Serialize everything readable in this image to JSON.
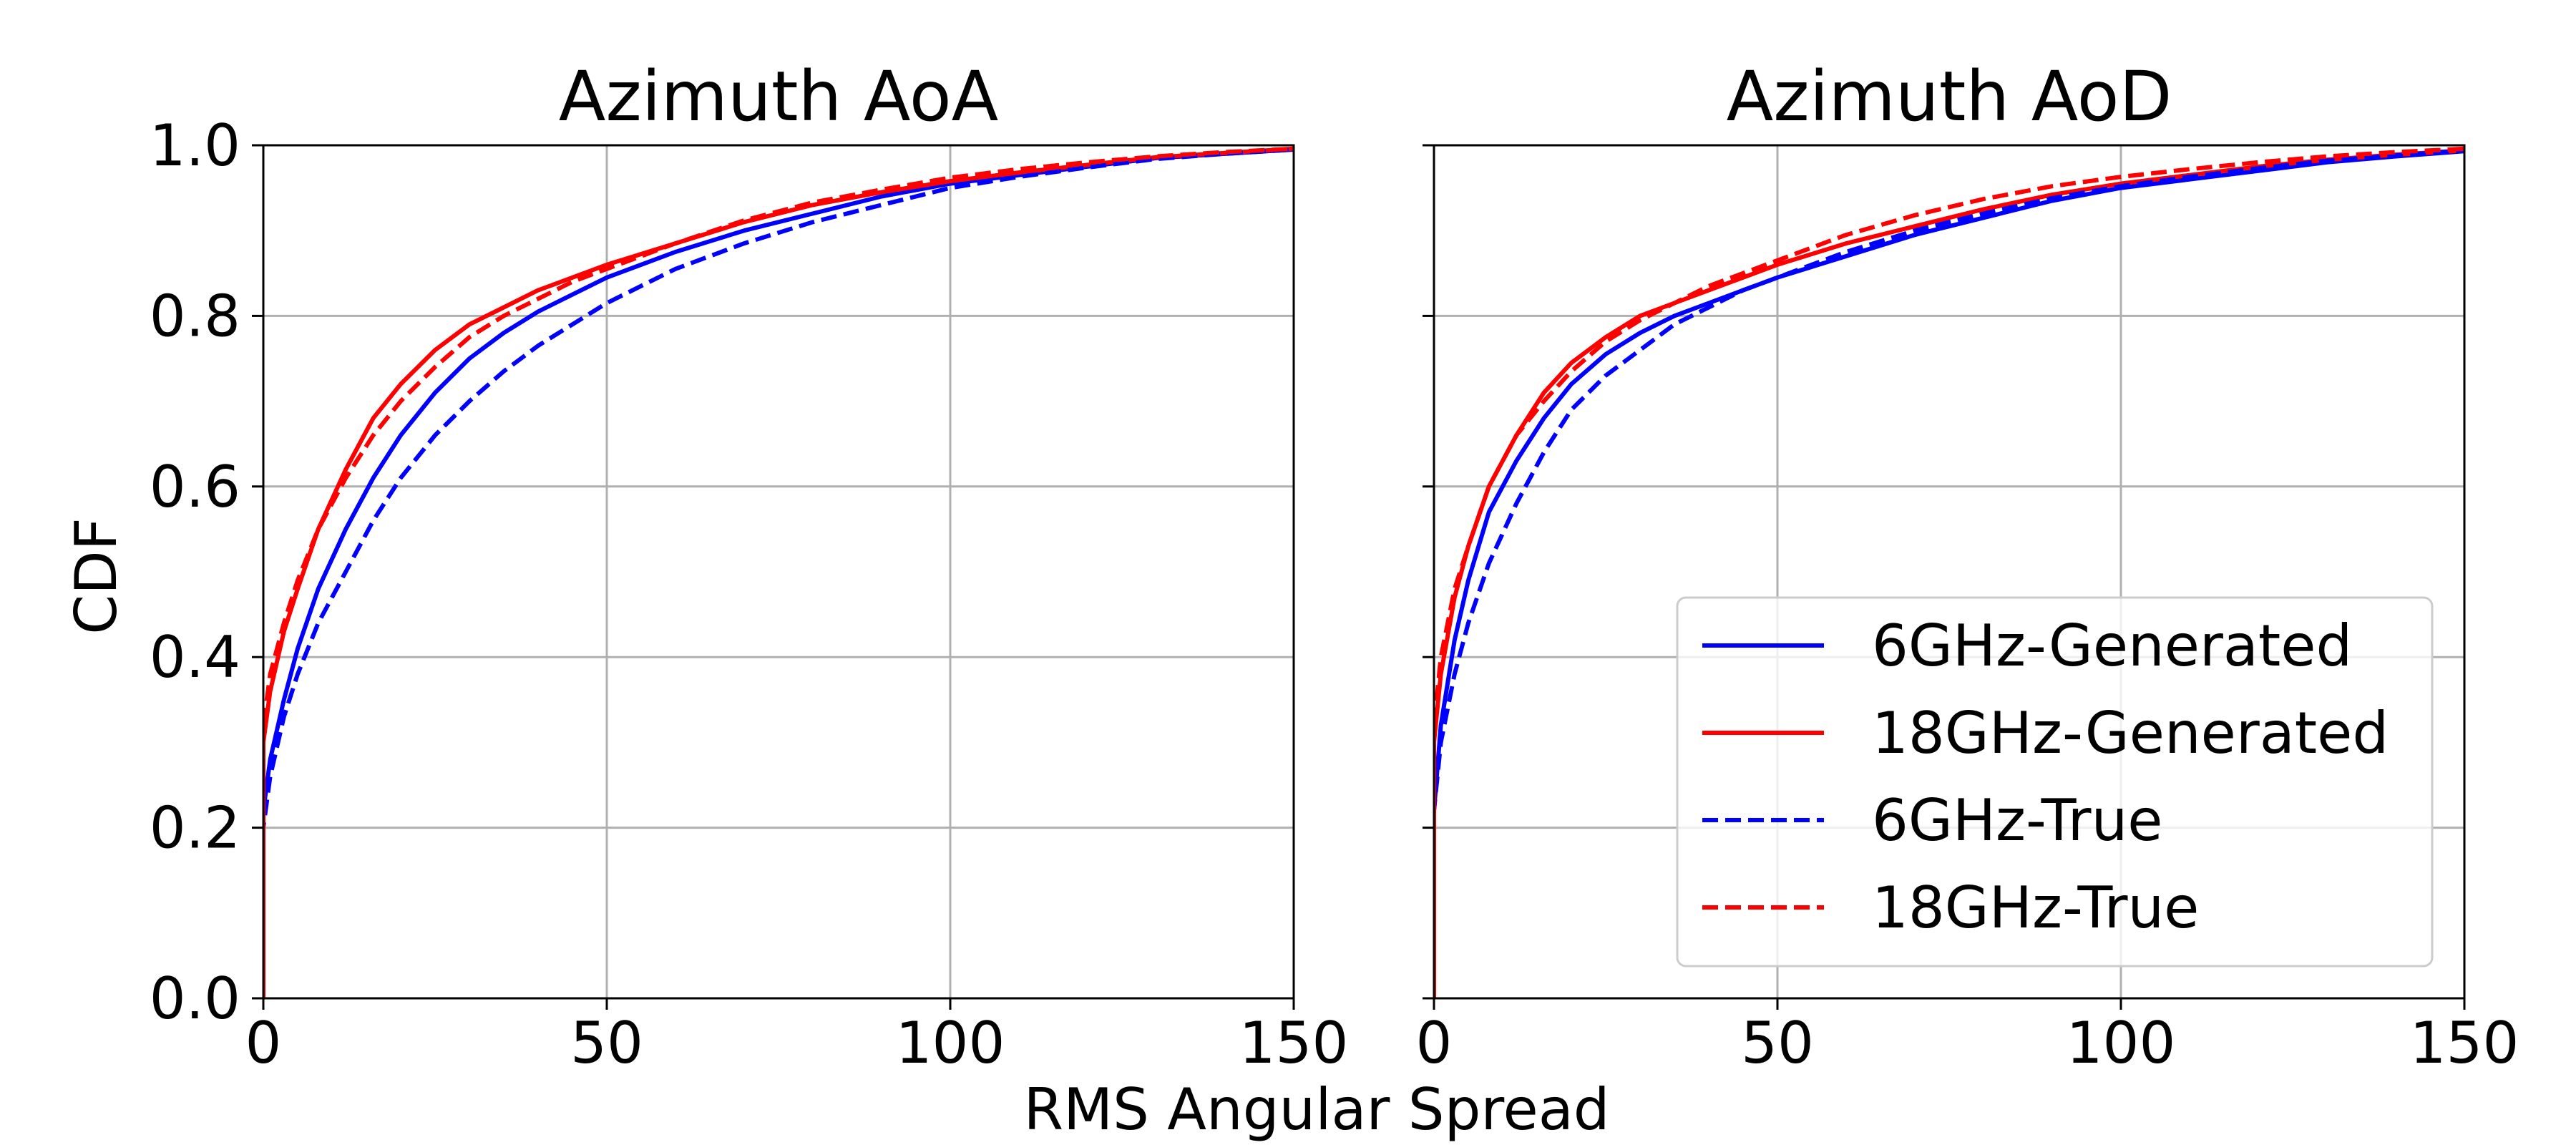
{
  "figure": {
    "shared_xlabel": "RMS Angular Spread",
    "shared_ylabel": "CDF"
  },
  "colors": {
    "blue": "#0000ff",
    "red": "#ff0000",
    "grid": "#b0b0b0",
    "axis": "#000000"
  },
  "legend": {
    "placement": "lower-right",
    "panel": 1,
    "entries": [
      {
        "label": "6GHz-Generated",
        "color": "#0000ff",
        "style": "solid"
      },
      {
        "label": "18GHz-Generated",
        "color": "#ff0000",
        "style": "solid"
      },
      {
        "label": "6GHz-True",
        "color": "#0000ff",
        "style": "dashed"
      },
      {
        "label": "18GHz-True",
        "color": "#ff0000",
        "style": "dashed"
      }
    ]
  },
  "chart_data": [
    {
      "type": "line",
      "title": "Azimuth AoA",
      "xlabel": "RMS Angular Spread",
      "ylabel": "CDF",
      "xlim": [
        0,
        150
      ],
      "ylim": [
        0,
        1
      ],
      "xticks": [
        "0",
        "50",
        "100",
        "150"
      ],
      "yticks": [
        "0.0",
        "0.2",
        "0.4",
        "0.6",
        "0.8",
        "1.0"
      ],
      "grid": true,
      "series": [
        {
          "name": "6GHz-Generated",
          "color": "#0000ff",
          "style": "solid",
          "x": [
            0,
            0,
            1,
            3,
            5,
            8,
            12,
            16,
            20,
            25,
            30,
            35,
            40,
            45,
            50,
            60,
            70,
            80,
            90,
            100,
            110,
            120,
            130,
            140,
            150
          ],
          "y": [
            0,
            0.22,
            0.28,
            0.35,
            0.41,
            0.48,
            0.55,
            0.61,
            0.66,
            0.71,
            0.75,
            0.78,
            0.805,
            0.825,
            0.845,
            0.875,
            0.9,
            0.92,
            0.94,
            0.955,
            0.965,
            0.975,
            0.985,
            0.99,
            0.995
          ]
        },
        {
          "name": "18GHz-Generated",
          "color": "#ff0000",
          "style": "solid",
          "x": [
            0,
            0,
            1,
            3,
            5,
            8,
            12,
            16,
            20,
            25,
            30,
            35,
            40,
            45,
            50,
            60,
            70,
            80,
            90,
            100,
            110,
            120,
            130,
            140,
            150
          ],
          "y": [
            0,
            0.3,
            0.36,
            0.43,
            0.48,
            0.55,
            0.62,
            0.68,
            0.72,
            0.76,
            0.79,
            0.81,
            0.83,
            0.845,
            0.86,
            0.885,
            0.91,
            0.93,
            0.945,
            0.958,
            0.968,
            0.977,
            0.986,
            0.991,
            0.996
          ]
        },
        {
          "name": "6GHz-True",
          "color": "#0000ff",
          "style": "dashed",
          "x": [
            0,
            0,
            1,
            3,
            5,
            8,
            12,
            16,
            20,
            25,
            30,
            35,
            40,
            45,
            50,
            60,
            70,
            80,
            90,
            100,
            110,
            120,
            130,
            140,
            150
          ],
          "y": [
            0,
            0.2,
            0.26,
            0.33,
            0.38,
            0.44,
            0.5,
            0.56,
            0.61,
            0.66,
            0.7,
            0.735,
            0.765,
            0.79,
            0.815,
            0.855,
            0.885,
            0.91,
            0.93,
            0.95,
            0.963,
            0.974,
            0.984,
            0.99,
            0.995
          ]
        },
        {
          "name": "18GHz-True",
          "color": "#ff0000",
          "style": "dashed",
          "x": [
            0,
            0,
            1,
            3,
            5,
            8,
            12,
            16,
            20,
            25,
            30,
            35,
            40,
            45,
            50,
            60,
            70,
            80,
            90,
            100,
            110,
            120,
            130,
            140,
            150
          ],
          "y": [
            0,
            0.32,
            0.38,
            0.44,
            0.49,
            0.55,
            0.61,
            0.66,
            0.7,
            0.74,
            0.775,
            0.8,
            0.82,
            0.84,
            0.855,
            0.885,
            0.912,
            0.933,
            0.948,
            0.962,
            0.972,
            0.98,
            0.987,
            0.992,
            0.996
          ]
        }
      ]
    },
    {
      "type": "line",
      "title": "Azimuth AoD",
      "xlabel": "RMS Angular Spread",
      "ylabel": "CDF",
      "xlim": [
        0,
        150
      ],
      "ylim": [
        0,
        1
      ],
      "xticks": [
        "0",
        "50",
        "100",
        "150"
      ],
      "yticks": [
        "0.0",
        "0.2",
        "0.4",
        "0.6",
        "0.8",
        "1.0"
      ],
      "grid": true,
      "series": [
        {
          "name": "6GHz-Generated",
          "color": "#0000ff",
          "style": "solid",
          "x": [
            0,
            0,
            1,
            3,
            5,
            8,
            12,
            16,
            20,
            25,
            30,
            35,
            40,
            45,
            50,
            60,
            70,
            80,
            90,
            100,
            110,
            120,
            130,
            140,
            150
          ],
          "y": [
            0,
            0.22,
            0.32,
            0.42,
            0.49,
            0.57,
            0.63,
            0.68,
            0.72,
            0.755,
            0.78,
            0.8,
            0.815,
            0.83,
            0.845,
            0.87,
            0.895,
            0.915,
            0.935,
            0.95,
            0.96,
            0.97,
            0.98,
            0.987,
            0.993
          ]
        },
        {
          "name": "18GHz-Generated",
          "color": "#ff0000",
          "style": "solid",
          "x": [
            0,
            0,
            1,
            3,
            5,
            8,
            12,
            16,
            20,
            25,
            30,
            35,
            40,
            45,
            50,
            60,
            70,
            80,
            90,
            100,
            110,
            120,
            130,
            140,
            150
          ],
          "y": [
            0,
            0.3,
            0.38,
            0.47,
            0.53,
            0.6,
            0.66,
            0.71,
            0.745,
            0.775,
            0.8,
            0.815,
            0.83,
            0.845,
            0.86,
            0.885,
            0.905,
            0.925,
            0.942,
            0.955,
            0.965,
            0.975,
            0.983,
            0.989,
            0.994
          ]
        },
        {
          "name": "6GHz-True",
          "color": "#0000ff",
          "style": "dashed",
          "x": [
            0,
            0,
            1,
            3,
            5,
            8,
            12,
            16,
            20,
            25,
            30,
            35,
            40,
            45,
            50,
            60,
            70,
            80,
            90,
            100,
            110,
            120,
            130,
            140,
            150
          ],
          "y": [
            0,
            0.22,
            0.3,
            0.38,
            0.44,
            0.51,
            0.58,
            0.64,
            0.69,
            0.73,
            0.76,
            0.79,
            0.81,
            0.83,
            0.845,
            0.875,
            0.9,
            0.92,
            0.938,
            0.952,
            0.963,
            0.973,
            0.982,
            0.988,
            0.994
          ]
        },
        {
          "name": "18GHz-True",
          "color": "#ff0000",
          "style": "dashed",
          "x": [
            0,
            0,
            1,
            3,
            5,
            8,
            12,
            16,
            20,
            25,
            30,
            35,
            40,
            45,
            50,
            60,
            70,
            80,
            90,
            100,
            110,
            120,
            130,
            140,
            150
          ],
          "y": [
            0,
            0.32,
            0.4,
            0.48,
            0.53,
            0.6,
            0.66,
            0.7,
            0.735,
            0.77,
            0.795,
            0.815,
            0.835,
            0.85,
            0.865,
            0.895,
            0.918,
            0.937,
            0.952,
            0.963,
            0.972,
            0.98,
            0.987,
            0.992,
            0.996
          ]
        }
      ]
    }
  ]
}
